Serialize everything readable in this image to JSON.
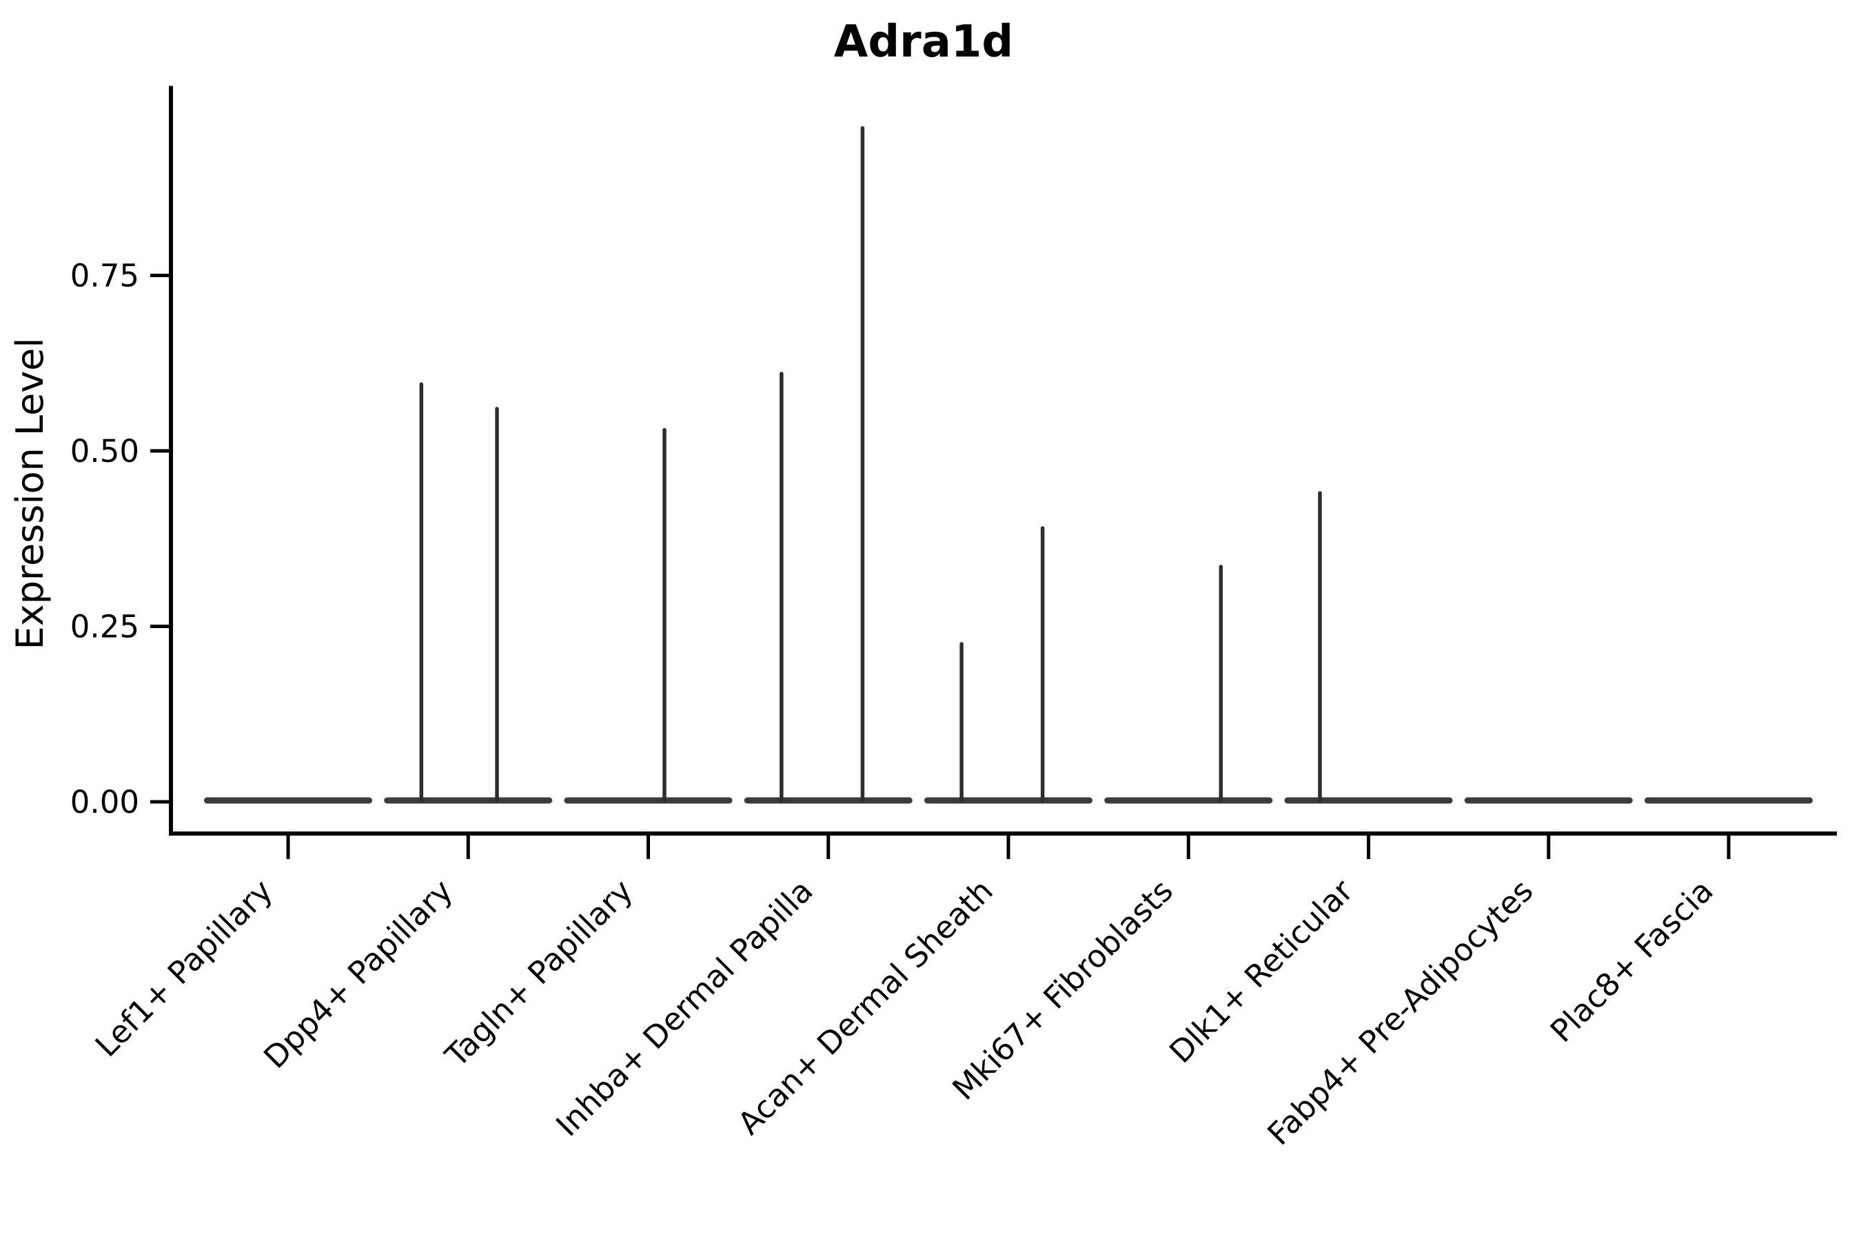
{
  "figure": {
    "title": "Adra1d",
    "y_axis_title": "Expression Level"
  },
  "chart_data": {
    "type": "violin",
    "title": "Adra1d",
    "xlabel": "",
    "ylabel": "Expression Level",
    "categories": [
      "Lef1+ Papillary",
      "Dpp4+ Papillary",
      "Tagln+ Papillary",
      "Inhba+ Dermal Papilla",
      "Acan+ Dermal Sheath",
      "Mki67+ Fibroblasts",
      "Dlk1+ Reticular",
      "Fabp4+ Pre-Adipocytes",
      "Plac8+ Fascia"
    ],
    "y_tick_values": [
      0,
      0.25,
      0.5,
      0.75
    ],
    "y_tick_labels": [
      "0.00",
      "0.25",
      "0.50",
      "0.75"
    ],
    "ylim": [
      -0.045,
      1.02
    ],
    "grid": false,
    "legend_position": "none",
    "violin_half_width": 0.45,
    "x_tick_rotation_deg": 45,
    "series": [
      {
        "name": "Lef1+ Papillary",
        "baseline_value": 0,
        "spikes": []
      },
      {
        "name": "Dpp4+ Papillary",
        "baseline_value": 0,
        "spikes": [
          {
            "offset": -0.26,
            "value": 0.595
          },
          {
            "offset": 0.16,
            "value": 0.56
          }
        ]
      },
      {
        "name": "Tagln+ Papillary",
        "baseline_value": 0,
        "spikes": [
          {
            "offset": 0.09,
            "value": 0.53
          }
        ]
      },
      {
        "name": "Inhba+ Dermal Papilla",
        "baseline_value": 0,
        "spikes": [
          {
            "offset": -0.26,
            "value": 0.61
          },
          {
            "offset": 0.19,
            "value": 0.96
          }
        ]
      },
      {
        "name": "Acan+ Dermal Sheath",
        "baseline_value": 0,
        "spikes": [
          {
            "offset": -0.26,
            "value": 0.225
          },
          {
            "offset": 0.19,
            "value": 0.39
          }
        ]
      },
      {
        "name": "Mki67+ Fibroblasts",
        "baseline_value": 0,
        "spikes": [
          {
            "offset": 0.18,
            "value": 0.335
          }
        ]
      },
      {
        "name": "Dlk1+ Reticular",
        "baseline_value": 0,
        "spikes": [
          {
            "offset": -0.27,
            "value": 0.44
          }
        ]
      },
      {
        "name": "Fabp4+ Pre-Adipocytes",
        "baseline_value": 0,
        "spikes": []
      },
      {
        "name": "Plac8+ Fascia",
        "baseline_value": 0,
        "spikes": []
      }
    ]
  },
  "style": {
    "background_color": "#ffffff",
    "axis_color": "#000000",
    "text_color": "#000000",
    "violin_stroke_color": "#2e2e2e",
    "baseline_stroke_color": "#3b3b3b"
  }
}
